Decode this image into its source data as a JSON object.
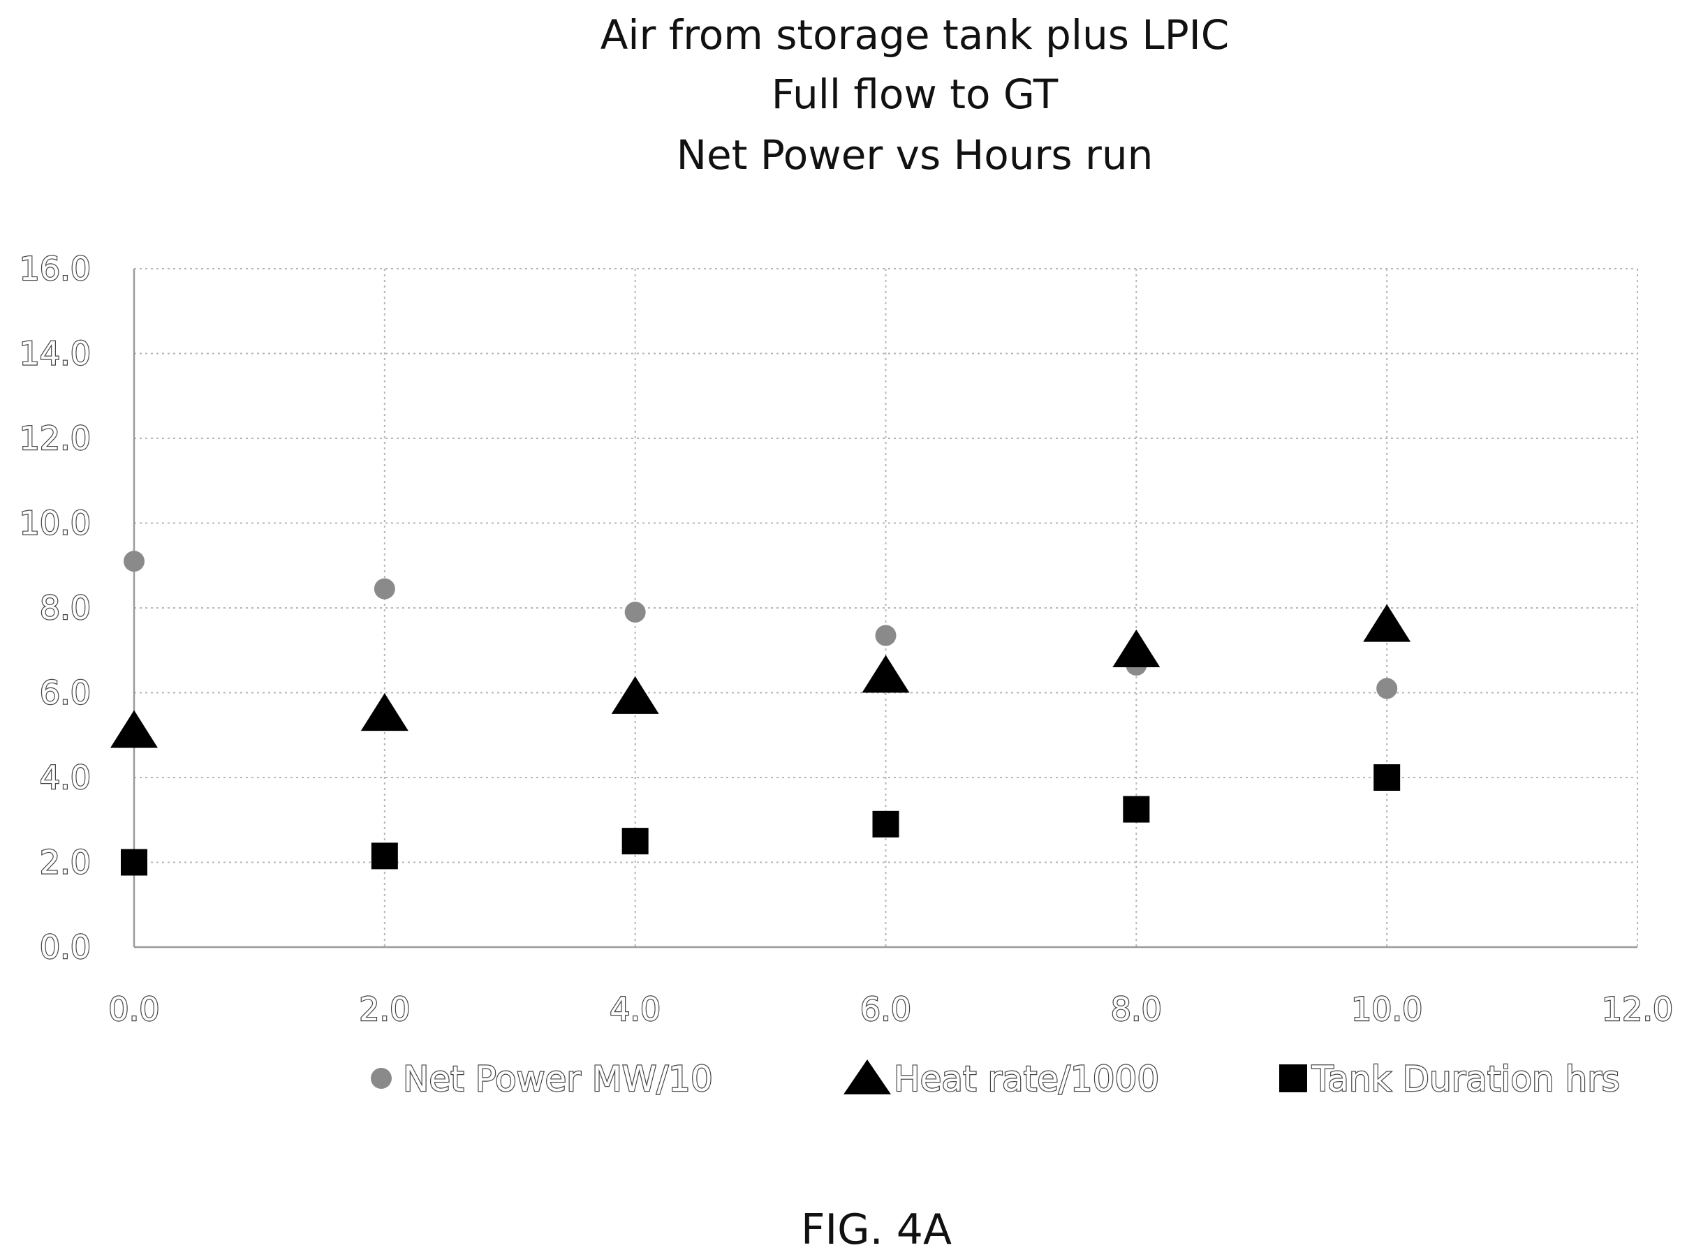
{
  "chart_data": {
    "type": "scatter",
    "title_lines": [
      "Air from storage tank plus LPIC",
      "Full flow to GT",
      "Net Power vs Hours run"
    ],
    "xlabel": "",
    "ylabel": "",
    "xlim": [
      0,
      12
    ],
    "ylim": [
      0,
      16
    ],
    "x_ticks": [
      "0.0",
      "2.0",
      "4.0",
      "6.0",
      "8.0",
      "10.0",
      "12.0"
    ],
    "y_ticks": [
      "0.0",
      "2.0",
      "4.0",
      "6.0",
      "8.0",
      "10.0",
      "12.0",
      "14.0",
      "16.0"
    ],
    "grid": true,
    "legend_position": "bottom",
    "series": [
      {
        "name": "Net Power MW/10",
        "marker": "circle",
        "color": "#8a8a8a",
        "x": [
          0,
          2,
          4,
          6,
          8,
          10
        ],
        "y": [
          9.1,
          8.45,
          7.9,
          7.35,
          6.65,
          6.1
        ]
      },
      {
        "name": "Heat rate/1000",
        "marker": "triangle",
        "color": "#000000",
        "x": [
          0,
          2,
          4,
          6,
          8,
          10
        ],
        "y": [
          5.1,
          5.5,
          5.9,
          6.4,
          7.0,
          7.6
        ]
      },
      {
        "name": "Tank Duration hrs",
        "marker": "square",
        "color": "#000000",
        "x": [
          0,
          2,
          4,
          6,
          8,
          10
        ],
        "y": [
          2.0,
          2.15,
          2.5,
          2.9,
          3.25,
          4.0
        ]
      }
    ]
  },
  "figure_label": "FIG. 4A"
}
